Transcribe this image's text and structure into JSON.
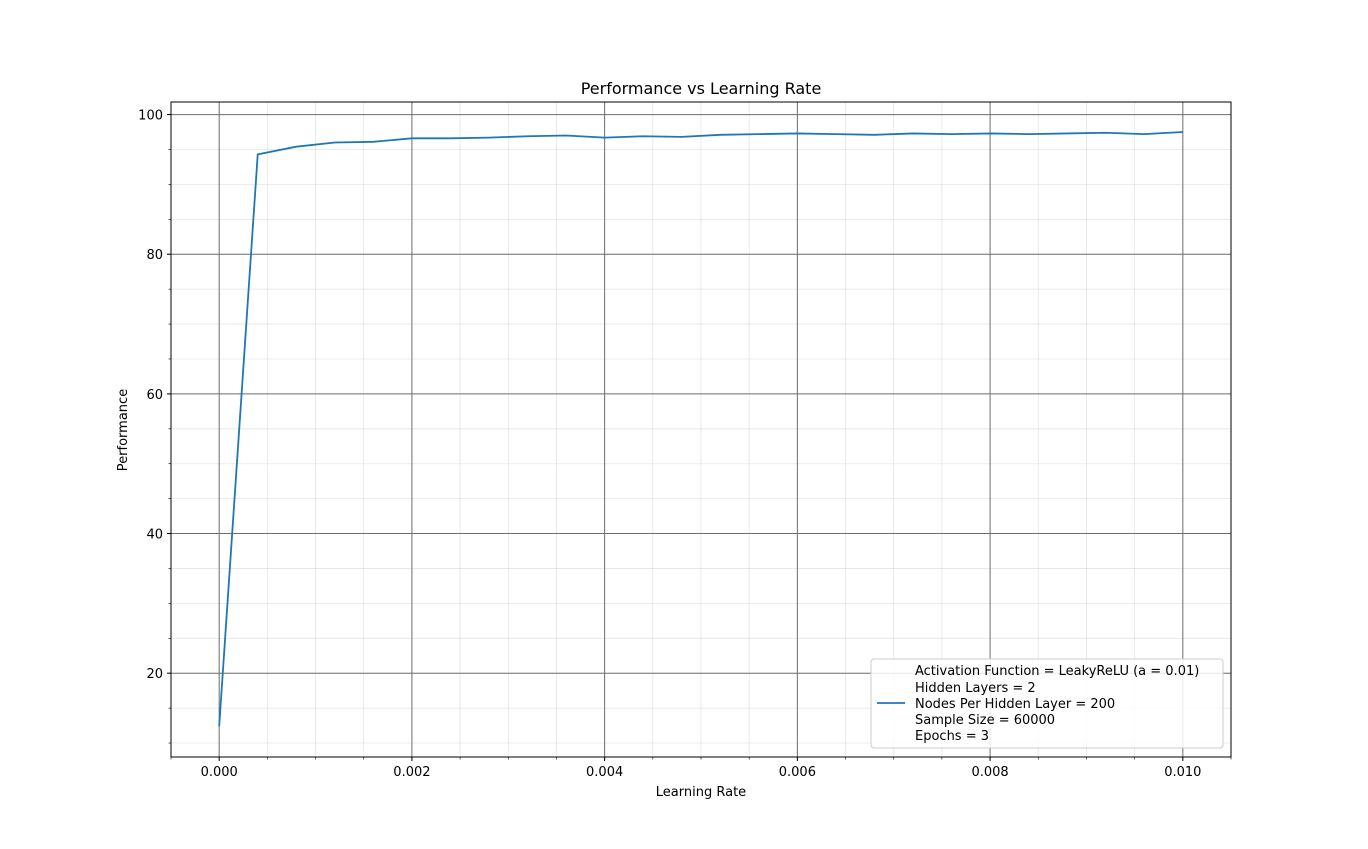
{
  "chart_data": {
    "type": "line",
    "title": "Performance vs Learning Rate",
    "xlabel": "Learning Rate",
    "ylabel": "Performance",
    "xlim": [
      -0.0005,
      0.0105
    ],
    "ylim": [
      8.0,
      101.8
    ],
    "x_ticks": [
      0.0,
      0.002,
      0.004,
      0.006,
      0.008,
      0.01
    ],
    "x_tick_labels": [
      "0.000",
      "0.002",
      "0.004",
      "0.006",
      "0.008",
      "0.010"
    ],
    "y_ticks": [
      20,
      40,
      60,
      80,
      100
    ],
    "y_tick_labels": [
      "20",
      "40",
      "60",
      "80",
      "100"
    ],
    "x_minor_step": 0.0005,
    "y_minor_step": 5,
    "grid": true,
    "legend_position": "bottom-right",
    "series": [
      {
        "name": "Activation Function = LeakyReLU (a = 0.01)\nHidden Layers = 2\nNodes Per Hidden Layer = 200\nSample Size = 60000\nEpochs = 3",
        "color": "#1f77b4",
        "x": [
          0.0,
          0.0004,
          0.0008,
          0.0012,
          0.0016,
          0.002,
          0.0024,
          0.0028,
          0.0032,
          0.0036,
          0.004,
          0.0044,
          0.0048,
          0.0052,
          0.0056,
          0.006,
          0.0064,
          0.0068,
          0.0072,
          0.0076,
          0.008,
          0.0084,
          0.0088,
          0.0092,
          0.0096,
          0.01
        ],
        "y": [
          12.4,
          94.3,
          95.4,
          96.0,
          96.1,
          96.6,
          96.6,
          96.7,
          96.9,
          97.0,
          96.7,
          96.9,
          96.8,
          97.1,
          97.2,
          97.3,
          97.2,
          97.1,
          97.3,
          97.2,
          97.3,
          97.2,
          97.3,
          97.4,
          97.2,
          97.5
        ]
      }
    ]
  },
  "legend": {
    "lines": [
      "Activation Function = LeakyReLU (a = 0.01)",
      "Hidden Layers = 2",
      "Nodes Per Hidden Layer = 200",
      "Sample Size = 60000",
      "Epochs = 3"
    ]
  }
}
